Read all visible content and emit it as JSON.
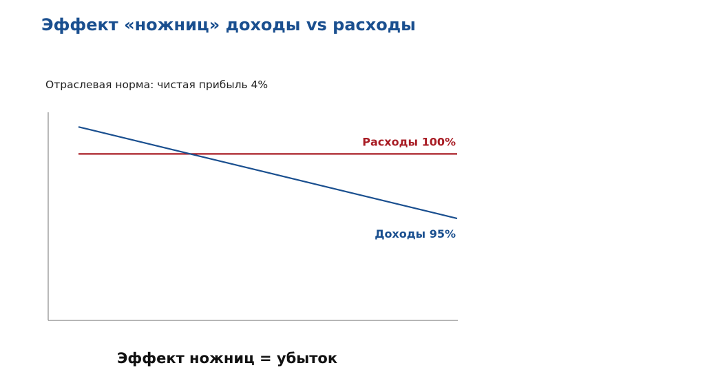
{
  "slide": {
    "title": "Эффект «ножниц» доходы vs расходы",
    "subtitle": "Отраслевая норма: чистая прибыль 4%",
    "conclusion": "Эффект ножниц = убыток"
  },
  "chart_data": {
    "type": "line",
    "title": "",
    "xlabel": "",
    "ylabel": "",
    "x": [
      0,
      1
    ],
    "ylim": [
      0,
      100
    ],
    "grid": false,
    "series": [
      {
        "name": "Расходы 100%",
        "values": [
          80,
          80
        ],
        "color": "#a81c24",
        "label_position": "above-end"
      },
      {
        "name": "Доходы  95%",
        "values": [
          93,
          49
        ],
        "color": "#1a4f8f",
        "label_position": "below-end"
      }
    ]
  }
}
